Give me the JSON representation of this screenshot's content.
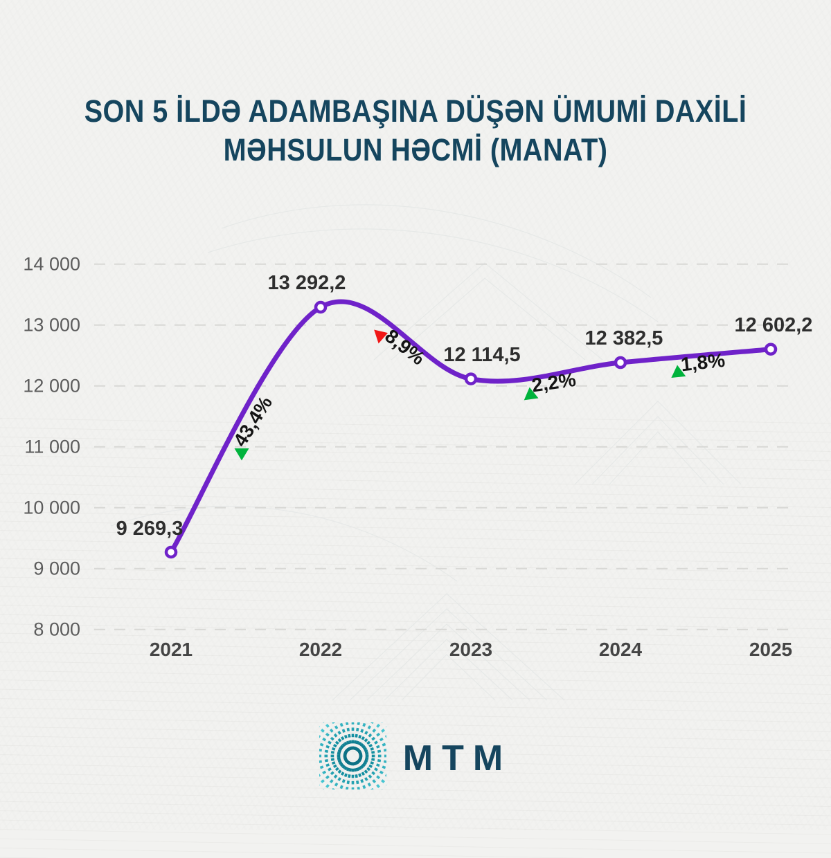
{
  "title": {
    "line1": "SON 5 İLDƏ ADAMBAŞINA DÜŞƏN ÜMUMİ DAXİLİ",
    "line2": "MƏHSULUN HƏCMİ (MANAT)",
    "color": "#15455e"
  },
  "chart_data": {
    "type": "line",
    "title": "Son 5 ildə adambaşına düşən ümumi daxili məhsulun həcmi (manat)",
    "x": [
      "2021",
      "2022",
      "2023",
      "2024",
      "2025"
    ],
    "values": [
      9269.3,
      13292.2,
      12114.5,
      12382.5,
      12602.2
    ],
    "point_labels": [
      "9 269,3",
      "13 292,2",
      "12 114,5",
      "12 382,5",
      "12 602,2"
    ],
    "changes": [
      {
        "label": "43,4%",
        "trend": "up"
      },
      {
        "label": "8,9%",
        "trend": "down"
      },
      {
        "label": "2,2%",
        "trend": "up"
      },
      {
        "label": "1,8%",
        "trend": "up"
      }
    ],
    "y_ticks": [
      {
        "value": 8000,
        "label": "8 000"
      },
      {
        "value": 9000,
        "label": "9 000"
      },
      {
        "value": 10000,
        "label": "10 000"
      },
      {
        "value": 11000,
        "label": "11 000"
      },
      {
        "value": 12000,
        "label": "12 000"
      },
      {
        "value": 13000,
        "label": "13 000"
      },
      {
        "value": 14000,
        "label": "14 000"
      }
    ],
    "ylim": [
      8000,
      14000
    ],
    "grid": "horizontal-dashed",
    "legend": "none",
    "marker": "open-circle",
    "palette": {
      "line": "#6f22c9",
      "up": "#00b33c",
      "down": "#f01616",
      "grid": "#d8d8d5",
      "tick": "#5c5c5c",
      "year": "#454545",
      "value": "#2e2e2e",
      "percent": "#141414"
    }
  },
  "footer": {
    "logo_text": "MTM",
    "logo_mark": "teal-starburst-square"
  }
}
